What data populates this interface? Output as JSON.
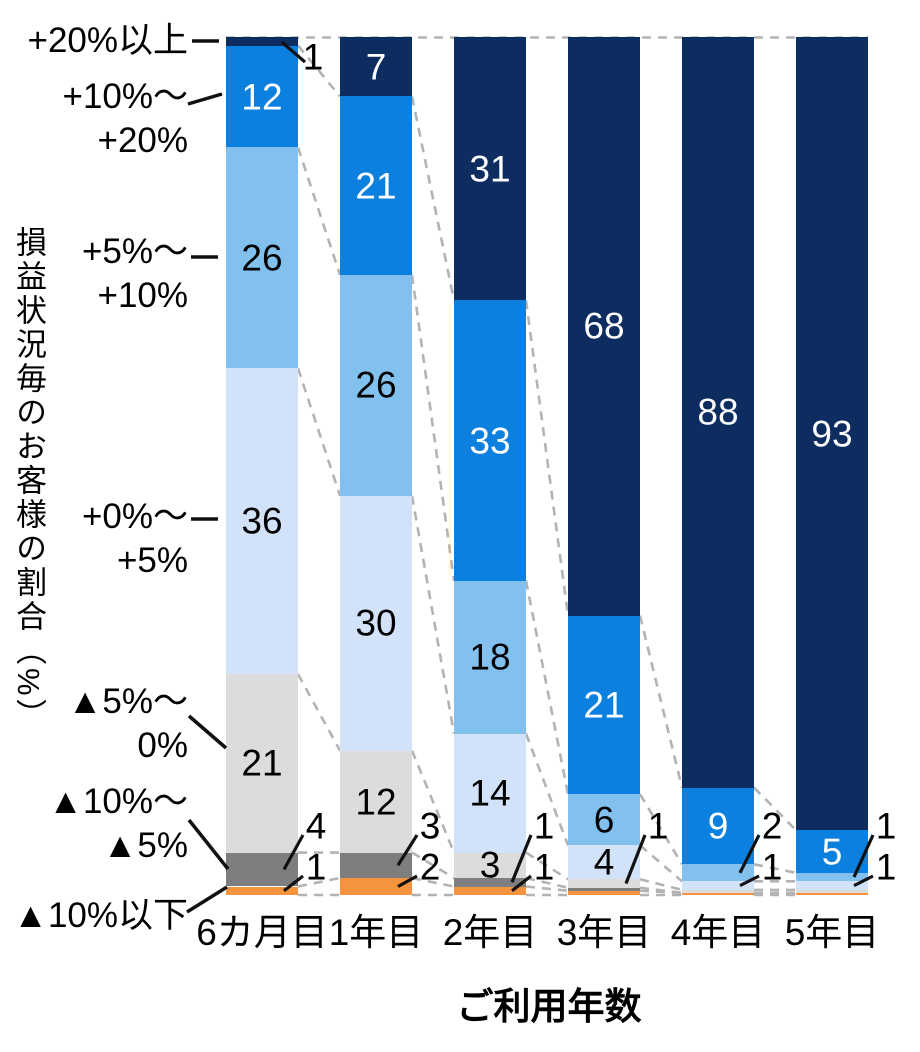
{
  "chart_data": {
    "type": "bar",
    "subtype": "stacked-percentage-bar",
    "title": "",
    "xlabel": "ご利用年数",
    "ylabel": "損益状況毎のお客様の割合（%）",
    "value_unit": "%",
    "grid": "top-100%-dashed-guide-with-dashed-connectors-between-bars",
    "legend_position": "left-axis-band-labels",
    "categories": [
      "6カ月目",
      "1年目",
      "2年目",
      "3年目",
      "4年目",
      "5年目"
    ],
    "bands": [
      {
        "name": "+20%以上",
        "color": "#0d2c60",
        "text_color": "#ffffff"
      },
      {
        "name": "+10%〜+20%",
        "color": "#0c80de",
        "text_color": "#ffffff"
      },
      {
        "name": "+5%〜+10%",
        "color": "#82c0ee",
        "text_color": "#000000"
      },
      {
        "name": "+0%〜+5%",
        "color": "#d2e2f8",
        "text_color": "#000000"
      },
      {
        "name": "▲5%〜0%",
        "color": "#dcdcdc",
        "text_color": "#000000"
      },
      {
        "name": "▲10%〜▲5%",
        "color": "#7e7e7e",
        "text_color": "#000000"
      },
      {
        "name": "▲10%以下",
        "color": "#f6933f",
        "text_color": "#000000"
      }
    ],
    "series": [
      {
        "name": "+20%以上",
        "values": [
          1,
          7,
          31,
          68,
          88,
          93
        ]
      },
      {
        "name": "+10%〜+20%",
        "values": [
          12,
          21,
          33,
          21,
          9,
          5
        ]
      },
      {
        "name": "+5%〜+10%",
        "values": [
          26,
          26,
          18,
          6,
          2,
          1
        ]
      },
      {
        "name": "+0%〜+5%",
        "values": [
          36,
          30,
          14,
          4,
          1,
          1
        ]
      },
      {
        "name": "▲5%〜0%",
        "values": [
          21,
          12,
          3,
          1,
          0,
          0
        ]
      },
      {
        "name": "▲10%〜▲5%",
        "values": [
          4,
          3,
          1,
          0,
          0,
          0
        ]
      },
      {
        "name": "▲10%以下",
        "values": [
          1,
          2,
          1,
          0,
          0,
          0
        ]
      }
    ],
    "bars": [
      {
        "category": "6カ月目",
        "segments": [
          {
            "band": 0,
            "value": 1,
            "label": "1",
            "label_mode": "callout-top"
          },
          {
            "band": 1,
            "value": 12,
            "label": "12",
            "label_mode": "inline"
          },
          {
            "band": 2,
            "value": 26,
            "label": "26",
            "label_mode": "inline"
          },
          {
            "band": 3,
            "value": 36,
            "label": "36",
            "label_mode": "inline"
          },
          {
            "band": 4,
            "value": 21,
            "label": "21",
            "label_mode": "inline"
          },
          {
            "band": 5,
            "value": 4,
            "label": "4",
            "label_mode": "callout"
          },
          {
            "band": 6,
            "value": 1,
            "label": "1",
            "label_mode": "callout"
          }
        ]
      },
      {
        "category": "1年目",
        "segments": [
          {
            "band": 0,
            "value": 7,
            "label": "7",
            "label_mode": "inline"
          },
          {
            "band": 1,
            "value": 21,
            "label": "21",
            "label_mode": "inline"
          },
          {
            "band": 2,
            "value": 26,
            "label": "26",
            "label_mode": "inline"
          },
          {
            "band": 3,
            "value": 30,
            "label": "30",
            "label_mode": "inline"
          },
          {
            "band": 4,
            "value": 12,
            "label": "12",
            "label_mode": "inline"
          },
          {
            "band": 5,
            "value": 3,
            "label": "3",
            "label_mode": "callout"
          },
          {
            "band": 6,
            "value": 2,
            "label": "2",
            "label_mode": "callout"
          }
        ]
      },
      {
        "category": "2年目",
        "segments": [
          {
            "band": 0,
            "value": 31,
            "label": "31",
            "label_mode": "inline"
          },
          {
            "band": 1,
            "value": 33,
            "label": "33",
            "label_mode": "inline"
          },
          {
            "band": 2,
            "value": 18,
            "label": "18",
            "label_mode": "inline"
          },
          {
            "band": 3,
            "value": 14,
            "label": "14",
            "label_mode": "inline"
          },
          {
            "band": 4,
            "value": 3,
            "label": "3",
            "label_mode": "inline"
          },
          {
            "band": 5,
            "value": 1,
            "label": "1",
            "label_mode": "callout"
          },
          {
            "band": 6,
            "value": 1,
            "label": "1",
            "label_mode": "callout"
          }
        ]
      },
      {
        "category": "3年目",
        "segments": [
          {
            "band": 0,
            "value": 68,
            "label": "68",
            "label_mode": "inline"
          },
          {
            "band": 1,
            "value": 21,
            "label": "21",
            "label_mode": "inline"
          },
          {
            "band": 2,
            "value": 6,
            "label": "6",
            "label_mode": "inline"
          },
          {
            "band": 3,
            "value": 4,
            "label": "4",
            "label_mode": "inline"
          },
          {
            "band": 4,
            "value": 1,
            "label": "1",
            "label_mode": "callout"
          },
          {
            "band": 5,
            "value": null,
            "draw": 0.35,
            "label": "",
            "label_mode": "none"
          },
          {
            "band": 6,
            "value": null,
            "draw": 0.5,
            "label": "",
            "label_mode": "none"
          }
        ]
      },
      {
        "category": "4年目",
        "segments": [
          {
            "band": 0,
            "value": 88,
            "label": "88",
            "label_mode": "inline"
          },
          {
            "band": 1,
            "value": 9,
            "label": "9",
            "label_mode": "inline"
          },
          {
            "band": 2,
            "value": 2,
            "label": "2",
            "label_mode": "callout"
          },
          {
            "band": 3,
            "value": 1,
            "label": "1",
            "label_mode": "callout"
          },
          {
            "band": 4,
            "value": null,
            "draw": 0.35,
            "label": "",
            "label_mode": "none"
          },
          {
            "band": 6,
            "value": null,
            "draw": 0.25,
            "label": "",
            "label_mode": "none"
          }
        ]
      },
      {
        "category": "5年目",
        "segments": [
          {
            "band": 0,
            "value": 93,
            "label": "93",
            "label_mode": "inline"
          },
          {
            "band": 1,
            "value": 5,
            "label": "5",
            "label_mode": "inline"
          },
          {
            "band": 2,
            "value": 1,
            "label": "1",
            "label_mode": "callout"
          },
          {
            "band": 3,
            "value": 1,
            "label": "1",
            "label_mode": "callout"
          },
          {
            "band": 4,
            "value": null,
            "draw": 0.35,
            "label": "",
            "label_mode": "none"
          },
          {
            "band": 6,
            "value": null,
            "draw": 0.25,
            "label": "",
            "label_mode": "none"
          }
        ]
      }
    ],
    "y_axis_ticks": [
      {
        "label": "+20%以上",
        "lines": [
          "+20%以上"
        ]
      },
      {
        "label": "+10%〜+20%",
        "lines": [
          "+10%〜",
          "+20%"
        ]
      },
      {
        "label": "+5%〜+10%",
        "lines": [
          "+5%〜",
          "+10%"
        ]
      },
      {
        "label": "+0%〜+5%",
        "lines": [
          "+0%〜",
          "+5%"
        ]
      },
      {
        "label": "▲5%〜0%",
        "lines": [
          "▲5%〜",
          "0%"
        ]
      },
      {
        "label": "▲10%〜▲5%",
        "lines": [
          "▲10%〜",
          "▲5%"
        ]
      },
      {
        "label": "▲10%以下",
        "lines": [
          "▲10%以下"
        ]
      }
    ],
    "colors": {
      "dashed_guide": "#b3b3b3",
      "leader_line": "#111111",
      "background": "#ffffff"
    }
  }
}
